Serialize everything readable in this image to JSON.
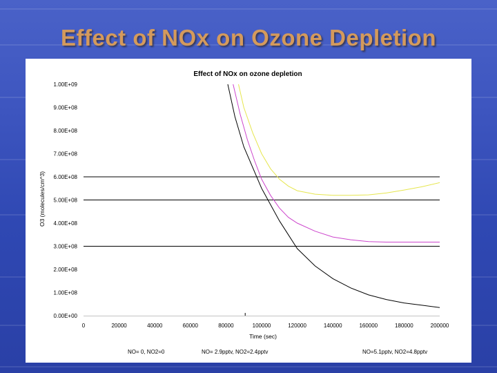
{
  "slide": {
    "title": "Effect of NOx on Ozone Depletion"
  },
  "chart_data": {
    "type": "line",
    "title": "Effect of NOx on ozone depletion",
    "xlabel": "Time (sec)",
    "ylabel": "O3 (molecules/cm^3)",
    "xlim": [
      0,
      200000
    ],
    "ylim": [
      0,
      1000000000
    ],
    "x_ticks": [
      0,
      20000,
      40000,
      60000,
      80000,
      100000,
      120000,
      140000,
      160000,
      180000,
      200000
    ],
    "x_tick_labels": [
      "0",
      "20000",
      "40000",
      "60000",
      "80000",
      "100000",
      "120000",
      "140000",
      "160000",
      "180000",
      "200000"
    ],
    "y_ticks": [
      0,
      100000000,
      200000000,
      300000000,
      400000000,
      500000000,
      600000000,
      700000000,
      800000000,
      900000000,
      1000000000
    ],
    "y_tick_labels": [
      "0.00E+00",
      "1.00E+08",
      "2.00E+08",
      "3.00E+08",
      "4.00E+08",
      "5.00E+08",
      "6.00E+08",
      "7.00E+08",
      "8.00E+08",
      "9.00E+08",
      "1.00E+09"
    ],
    "gridlines_y": [
      300000000,
      500000000,
      600000000
    ],
    "legend_position": "bottom",
    "series": [
      {
        "name": "NO= 0, NO2=0",
        "color": "#000000",
        "x": [
          81000,
          85000,
          90000,
          95000,
          100000,
          105000,
          110000,
          115000,
          120000,
          130000,
          140000,
          150000,
          160000,
          170000,
          180000,
          190000,
          200000
        ],
        "y": [
          1000000000,
          860000000,
          730000000,
          640000000,
          550000000,
          480000000,
          410000000,
          350000000,
          290000000,
          215000000,
          160000000,
          120000000,
          90000000,
          70000000,
          55000000,
          45000000,
          35000000
        ]
      },
      {
        "name": "NO= 2.9pptv, NO2=2.4pptv",
        "color": "#cc44cc",
        "x": [
          84000,
          88000,
          92000,
          96000,
          100000,
          105000,
          110000,
          115000,
          120000,
          130000,
          140000,
          150000,
          160000,
          170000,
          180000,
          190000,
          200000
        ],
        "y": [
          1000000000,
          870000000,
          760000000,
          670000000,
          590000000,
          520000000,
          465000000,
          425000000,
          400000000,
          365000000,
          340000000,
          328000000,
          320000000,
          318000000,
          318000000,
          318000000,
          318000000
        ]
      },
      {
        "name": "NO=5.1pptv, NO2=4.8pptv",
        "color": "#e6e64d",
        "x": [
          87000,
          90000,
          95000,
          100000,
          105000,
          110000,
          115000,
          120000,
          130000,
          140000,
          150000,
          160000,
          170000,
          180000,
          190000,
          200000
        ],
        "y": [
          1000000000,
          900000000,
          790000000,
          700000000,
          635000000,
          590000000,
          560000000,
          540000000,
          525000000,
          520000000,
          520000000,
          522000000,
          530000000,
          543000000,
          557000000,
          575000000
        ]
      }
    ]
  }
}
